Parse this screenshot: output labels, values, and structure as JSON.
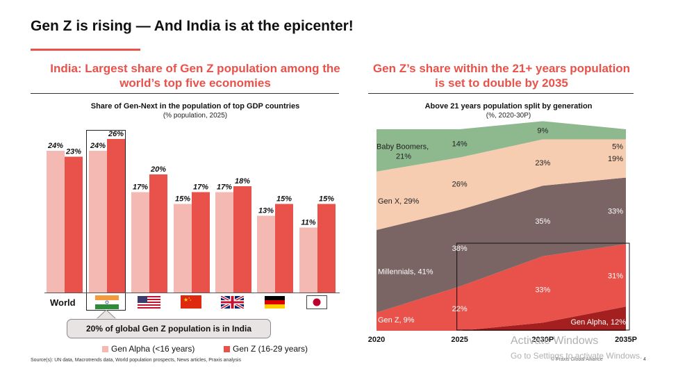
{
  "slide_title": "Gen Z is rising — And India is at the epicenter!",
  "left_panel": {
    "heading": "India: Largest share of Gen Z population among the world’s top five economies",
    "subtitle": "Share of Gen-Next in the population of top GDP countries",
    "subsubtitle": "(% population, 2025)",
    "world_label": "World",
    "callout": "20% of global Gen Z population is in India",
    "legend": {
      "alpha": "Gen Alpha (<16 years)",
      "z": "Gen Z (16-29 years)"
    }
  },
  "right_panel": {
    "heading": "Gen Z’s share within the 21+ years population is set to double by 2035",
    "subtitle": "Above 21 years population split by generation",
    "subsubtitle": "(%, 2020-30P)"
  },
  "colors": {
    "accent": "#e8524a",
    "gen_alpha_bar": "#f4b9b2",
    "gen_z_bar": "#e8524a",
    "baby_boomers": "#8eb88e",
    "gen_x": "#f6cdb1",
    "millennials": "#7a6464",
    "gen_z_area": "#e8524a",
    "gen_alpha_area": "#a42020"
  },
  "footer": {
    "source": "Source(s): UN data, Macrotrends data, World population prospects, News articles, Praxis analysis",
    "brand": "© Praxis Global Alliance",
    "page": "4"
  },
  "watermark": {
    "line1": "Activate Windows",
    "line2": "Go to Settings to activate Windows."
  },
  "chart_data": [
    {
      "type": "bar",
      "title": "Share of Gen-Next in the population of top GDP countries",
      "subtitle": "(% population, 2025)",
      "categories": [
        "World",
        "India",
        "USA",
        "China",
        "UK",
        "Germany",
        "Japan"
      ],
      "icons": [
        "",
        "india-flag-icon",
        "usa-flag-icon",
        "china-flag-icon",
        "uk-flag-icon",
        "germany-flag-icon",
        "japan-flag-icon"
      ],
      "series": [
        {
          "name": "Gen Alpha (<16 years)",
          "values": [
            24,
            24,
            17,
            15,
            17,
            13,
            11
          ],
          "labels": [
            "24%",
            "24%",
            "17%",
            "15%",
            "17%",
            "13%",
            "11%"
          ]
        },
        {
          "name": "Gen Z (16-29 years)",
          "values": [
            23,
            26,
            20,
            17,
            18,
            15,
            15
          ],
          "labels": [
            "23%",
            "26%",
            "20%",
            "17%",
            "18%",
            "15%",
            "15%"
          ]
        }
      ],
      "ylim": [
        0,
        30
      ],
      "legend": "bottom"
    },
    {
      "type": "area",
      "title": "Above 21 years population split by generation",
      "subtitle": "(%, 2020-30P)",
      "x": [
        2020,
        2025,
        2030,
        2035
      ],
      "x_labels": [
        "2020",
        "2025",
        "2030P",
        "2035P"
      ],
      "stacked": true,
      "ylim": [
        0,
        100
      ],
      "series": [
        {
          "name": "Gen Alpha",
          "values": [
            0,
            0,
            4,
            12
          ]
        },
        {
          "name": "Gen Z",
          "values": [
            9,
            22,
            33,
            31
          ]
        },
        {
          "name": "Millennials",
          "values": [
            41,
            38,
            35,
            33
          ]
        },
        {
          "name": "Gen X",
          "values": [
            29,
            26,
            23,
            19
          ]
        },
        {
          "name": "Baby Boomers",
          "values": [
            21,
            14,
            9,
            5
          ]
        }
      ],
      "annotations": [
        {
          "text": "Baby Boomers,",
          "x": 2020,
          "series": "Baby Boomers"
        },
        {
          "text": "21%",
          "x": 2020,
          "series": "Baby Boomers"
        },
        {
          "text": "14%",
          "x": 2025,
          "series": "Baby Boomers"
        },
        {
          "text": "9%",
          "x": 2030,
          "series": "Baby Boomers"
        },
        {
          "text": "5%",
          "x": 2035,
          "series": "Baby Boomers"
        },
        {
          "text": "Gen X, 29%",
          "x": 2020,
          "series": "Gen X"
        },
        {
          "text": "26%",
          "x": 2025,
          "series": "Gen X"
        },
        {
          "text": "23%",
          "x": 2030,
          "series": "Gen X"
        },
        {
          "text": "19%",
          "x": 2035,
          "series": "Gen X"
        },
        {
          "text": "Millennials, 41%",
          "x": 2020,
          "series": "Millennials"
        },
        {
          "text": "38%",
          "x": 2025,
          "series": "Millennials"
        },
        {
          "text": "35%",
          "x": 2030,
          "series": "Millennials"
        },
        {
          "text": "33%",
          "x": 2035,
          "series": "Millennials"
        },
        {
          "text": "Gen Z, 9%",
          "x": 2020,
          "series": "Gen Z"
        },
        {
          "text": "22%",
          "x": 2025,
          "series": "Gen Z"
        },
        {
          "text": "33%",
          "x": 2030,
          "series": "Gen Z"
        },
        {
          "text": "31%",
          "x": 2035,
          "series": "Gen Z"
        },
        {
          "text": "Gen Alpha, 12%",
          "x": 2035,
          "series": "Gen Alpha"
        }
      ],
      "highlight_box": {
        "x_from": 2025,
        "x_to": 2035
      }
    }
  ]
}
